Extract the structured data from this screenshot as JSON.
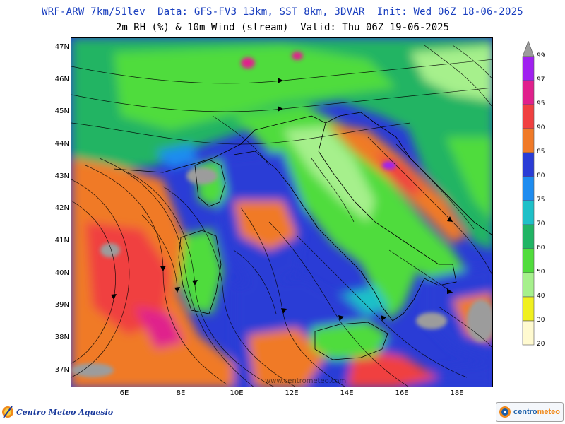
{
  "header": {
    "line1": "WRF-ARW 7km/51lev  Data: GFS-FV3 13km, SST 8km, 3DVAR  Init: Wed 06Z 18-06-2025",
    "line2": "2m RH (%) & 10m Wind (stream)  Valid: Thu 06Z 19-06-2025"
  },
  "map": {
    "lat_labels": [
      "47N",
      "46N",
      "45N",
      "44N",
      "43N",
      "42N",
      "41N",
      "40N",
      "39N",
      "38N",
      "37N"
    ],
    "lon_labels": [
      "6E",
      "8E",
      "10E",
      "12E",
      "14E",
      "16E",
      "18E"
    ],
    "watermark": "www.centrometeo.com"
  },
  "colorbar": {
    "levels": [
      "99",
      "97",
      "95",
      "90",
      "85",
      "80",
      "75",
      "70",
      "60",
      "50",
      "40",
      "30",
      "20"
    ],
    "colors": [
      "#9c9c9c",
      "#a020f0",
      "#e0208c",
      "#f04040",
      "#f07a28",
      "#2a3cd6",
      "#1e8cf0",
      "#1ec0c8",
      "#20b464",
      "#50dc3c",
      "#a6f08c",
      "#f0f020",
      "#fffad0"
    ]
  },
  "logos": {
    "left": "Centro Meteo Aquesio",
    "right_main": "centro",
    "right_accent": "meteo"
  }
}
